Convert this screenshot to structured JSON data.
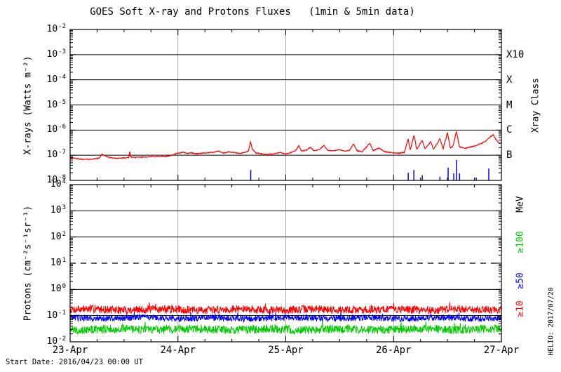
{
  "title": "GOES Soft X-ray and Protons Fluxes   (1min & 5min data)",
  "start_date": "Start Date: 2016/04/23 00:00 UT",
  "credit": "HELIO: 2017/07/20",
  "colors": {
    "frame": "#000000",
    "grid": "#b0b0b0",
    "xray_long": "#ff0000",
    "xray_short_bursts": "#0000ff",
    "protons_ge10": "#ff0000",
    "protons_ge50": "#0000ff",
    "protons_ge100": "#00cc00"
  },
  "x_axis": {
    "tick_labels": [
      "23-Apr",
      "24-Apr",
      "25-Apr",
      "26-Apr",
      "27-Apr"
    ],
    "span_days": 4,
    "minor_ticks_per_day": 4,
    "grid_at_days": [
      1,
      2,
      3
    ]
  },
  "chart_data": [
    {
      "type": "line",
      "panel": "xray",
      "ylabel": "X-rays (Watts m⁻²)",
      "right_axis_label": "Xray Class",
      "ylim": [
        1e-08,
        0.01
      ],
      "y_tick_exponents": [
        -2,
        -3,
        -4,
        -5,
        -6,
        -7,
        -8
      ],
      "solid_hline_exponents": [
        -3,
        -4,
        -5,
        -6,
        -7
      ],
      "dashed_hline_exponents": [],
      "class_labels": [
        {
          "label": "X10",
          "exponent": -3
        },
        {
          "label": "X",
          "exponent": -4
        },
        {
          "label": "M",
          "exponent": -5
        },
        {
          "label": "C",
          "exponent": -6
        },
        {
          "label": "B",
          "exponent": -7
        }
      ],
      "series": [
        {
          "name": "xray-long-flux",
          "color_key": "xray_long",
          "style": "curve",
          "noise_decades": 0.018,
          "keypoints_day_value": [
            [
              0.0,
              8e-08
            ],
            [
              0.06,
              7.3e-08
            ],
            [
              0.13,
              6.8e-08
            ],
            [
              0.2,
              7e-08
            ],
            [
              0.27,
              7.6e-08
            ],
            [
              0.295,
              1.12e-07
            ],
            [
              0.32,
              9.5e-08
            ],
            [
              0.36,
              8.2e-08
            ],
            [
              0.42,
              7.6e-08
            ],
            [
              0.48,
              7.7e-08
            ],
            [
              0.545,
              8e-08
            ],
            [
              0.553,
              1.55e-07
            ],
            [
              0.561,
              8.4e-08
            ],
            [
              0.62,
              8.2e-08
            ],
            [
              0.7,
              8.6e-08
            ],
            [
              0.78,
              8.8e-08
            ],
            [
              0.85,
              8.8e-08
            ],
            [
              0.91,
              9.2e-08
            ],
            [
              0.96,
              1.05e-07
            ],
            [
              0.99,
              1.18e-07
            ],
            [
              1.02,
              1.22e-07
            ],
            [
              1.05,
              1.35e-07
            ],
            [
              1.08,
              1.18e-07
            ],
            [
              1.12,
              1.25e-07
            ],
            [
              1.17,
              1.15e-07
            ],
            [
              1.22,
              1.2e-07
            ],
            [
              1.28,
              1.25e-07
            ],
            [
              1.33,
              1.3e-07
            ],
            [
              1.38,
              1.5e-07
            ],
            [
              1.42,
              1.2e-07
            ],
            [
              1.47,
              1.35e-07
            ],
            [
              1.52,
              1.28e-07
            ],
            [
              1.57,
              1.18e-07
            ],
            [
              1.62,
              1.3e-07
            ],
            [
              1.655,
              1.45e-07
            ],
            [
              1.672,
              3.5e-07
            ],
            [
              1.69,
              1.8e-07
            ],
            [
              1.72,
              1.25e-07
            ],
            [
              1.78,
              1.12e-07
            ],
            [
              1.84,
              1.08e-07
            ],
            [
              1.9,
              1.15e-07
            ],
            [
              1.95,
              1.28e-07
            ],
            [
              2.0,
              1.12e-07
            ],
            [
              2.04,
              1.25e-07
            ],
            [
              2.09,
              1.5e-07
            ],
            [
              2.12,
              2.4e-07
            ],
            [
              2.145,
              1.5e-07
            ],
            [
              2.19,
              1.55e-07
            ],
            [
              2.23,
              2.1e-07
            ],
            [
              2.26,
              1.5e-07
            ],
            [
              2.31,
              1.65e-07
            ],
            [
              2.355,
              2.5e-07
            ],
            [
              2.39,
              1.55e-07
            ],
            [
              2.44,
              1.5e-07
            ],
            [
              2.49,
              1.68e-07
            ],
            [
              2.54,
              1.45e-07
            ],
            [
              2.59,
              1.55e-07
            ],
            [
              2.63,
              2.8e-07
            ],
            [
              2.66,
              1.5e-07
            ],
            [
              2.71,
              1.4e-07
            ],
            [
              2.78,
              3e-07
            ],
            [
              2.81,
              1.55e-07
            ],
            [
              2.87,
              1.95e-07
            ],
            [
              2.91,
              1.4e-07
            ],
            [
              2.96,
              1.3e-07
            ],
            [
              3.0,
              1.25e-07
            ],
            [
              3.05,
              1.2e-07
            ],
            [
              3.1,
              1.3e-07
            ],
            [
              3.135,
              4.5e-07
            ],
            [
              3.155,
              1.6e-07
            ],
            [
              3.19,
              6.5e-07
            ],
            [
              3.215,
              1.7e-07
            ],
            [
              3.265,
              4e-07
            ],
            [
              3.29,
              1.75e-07
            ],
            [
              3.345,
              3.5e-07
            ],
            [
              3.37,
              1.7e-07
            ],
            [
              3.43,
              4.5e-07
            ],
            [
              3.46,
              1.8e-07
            ],
            [
              3.5,
              8e-07
            ],
            [
              3.525,
              2e-07
            ],
            [
              3.55,
              2.2e-07
            ],
            [
              3.583,
              9e-07
            ],
            [
              3.61,
              2.2e-07
            ],
            [
              3.66,
              1.9e-07
            ],
            [
              3.71,
              2.1e-07
            ],
            [
              3.76,
              2.4e-07
            ],
            [
              3.82,
              3e-07
            ],
            [
              3.86,
              3.8e-07
            ],
            [
              3.9,
              5.5e-07
            ],
            [
              3.925,
              6.5e-07
            ],
            [
              3.95,
              4.2e-07
            ],
            [
              3.975,
              3.1e-07
            ],
            [
              4.0,
              2.9e-07
            ]
          ]
        },
        {
          "name": "xray-short-bursts",
          "color_key": "xray_short_bursts",
          "style": "impulse",
          "base_value": 1e-08,
          "points_day_value": [
            [
              1.675,
              2.6e-08
            ],
            [
              3.136,
              2e-08
            ],
            [
              3.188,
              2.6e-08
            ],
            [
              3.266,
              1.6e-08
            ],
            [
              3.43,
              1.4e-08
            ],
            [
              3.506,
              3.2e-08
            ],
            [
              3.558,
              1.9e-08
            ],
            [
              3.584,
              6.5e-08
            ],
            [
              3.612,
              1.9e-08
            ],
            [
              3.766,
              1.3e-08
            ],
            [
              3.883,
              3e-08
            ]
          ]
        }
      ]
    },
    {
      "type": "line",
      "panel": "protons",
      "ylabel": "Protons (cm⁻²s⁻¹sr⁻¹)",
      "right_axis_label": "MeV",
      "ylim": [
        0.01,
        10000.0
      ],
      "y_tick_exponents": [
        4,
        3,
        2,
        1,
        0,
        -1,
        -2
      ],
      "solid_hline_exponents": [
        3,
        2,
        0,
        -1
      ],
      "dashed_hline_exponents": [
        1
      ],
      "series": [
        {
          "name": "protons-ge10mev",
          "label": "≥10",
          "color_key": "protons_ge10",
          "style": "noise",
          "baseline": 0.17,
          "noise_decades": 0.15,
          "label_pos_frac": 0.79
        },
        {
          "name": "protons-ge50mev",
          "label": "≥50",
          "color_key": "protons_ge50",
          "style": "noise",
          "baseline": 0.08,
          "noise_decades": 0.12,
          "label_pos_frac": 0.612
        },
        {
          "name": "protons-ge100mev",
          "label": "≥100",
          "color_key": "protons_ge100",
          "style": "noise",
          "baseline": 0.03,
          "noise_decades": 0.16,
          "label_pos_frac": 0.366
        }
      ]
    }
  ]
}
